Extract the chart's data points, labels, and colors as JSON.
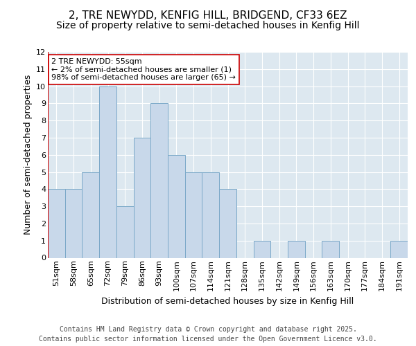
{
  "title1": "2, TRE NEWYDD, KENFIG HILL, BRIDGEND, CF33 6EZ",
  "title2": "Size of property relative to semi-detached houses in Kenfig Hill",
  "xlabel": "Distribution of semi-detached houses by size in Kenfig Hill",
  "ylabel": "Number of semi-detached properties",
  "categories": [
    "51sqm",
    "58sqm",
    "65sqm",
    "72sqm",
    "79sqm",
    "86sqm",
    "93sqm",
    "100sqm",
    "107sqm",
    "114sqm",
    "121sqm",
    "128sqm",
    "135sqm",
    "142sqm",
    "149sqm",
    "156sqm",
    "163sqm",
    "170sqm",
    "177sqm",
    "184sqm",
    "191sqm"
  ],
  "values": [
    4,
    4,
    5,
    10,
    3,
    7,
    9,
    6,
    5,
    5,
    4,
    0,
    1,
    0,
    1,
    0,
    1,
    0,
    0,
    0,
    1
  ],
  "bar_color": "#c8d8ea",
  "bar_edge_color": "#7aa8c8",
  "highlight_line_color": "#cc0000",
  "ylim": [
    0,
    12
  ],
  "yticks": [
    0,
    1,
    2,
    3,
    4,
    5,
    6,
    7,
    8,
    9,
    10,
    11,
    12
  ],
  "annotation_text": "2 TRE NEWYDD: 55sqm\n← 2% of semi-detached houses are smaller (1)\n98% of semi-detached houses are larger (65) →",
  "footer": "Contains HM Land Registry data © Crown copyright and database right 2025.\nContains public sector information licensed under the Open Government Licence v3.0.",
  "bg_color": "#dde8f0",
  "grid_color": "#ffffff",
  "title_fontsize": 11,
  "subtitle_fontsize": 10,
  "axis_label_fontsize": 9,
  "tick_fontsize": 8,
  "footer_fontsize": 7,
  "annot_fontsize": 8
}
